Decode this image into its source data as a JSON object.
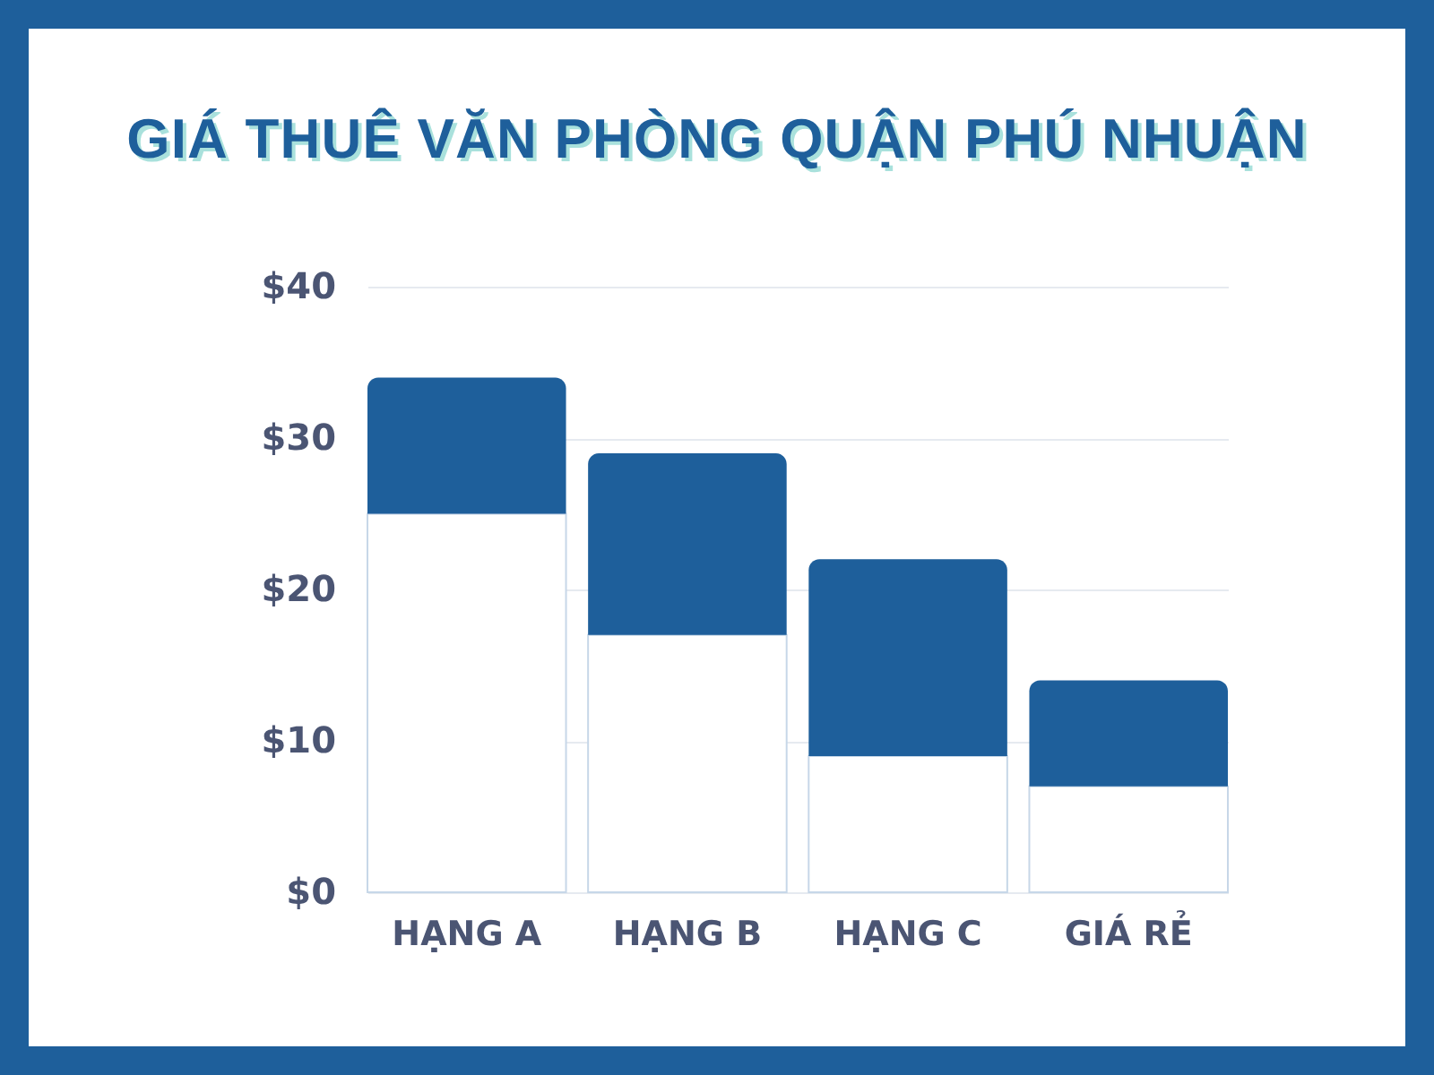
{
  "chart_data": {
    "type": "bar",
    "title": "GIÁ THUÊ VĂN PHÒNG QUẬN PHÚ NHUẬN",
    "categories": [
      "HẠNG A",
      "HẠNG B",
      "HẠNG C",
      "GIÁ RẺ"
    ],
    "stacked": true,
    "series": [
      {
        "color": "#ffffff",
        "values": [
          25,
          17,
          9,
          7
        ]
      },
      {
        "color": "#1e5f9b",
        "values": [
          9,
          12,
          13,
          7
        ]
      }
    ],
    "ylim": [
      0,
      40
    ],
    "yticks": [
      {
        "value": 0,
        "label": "$0"
      },
      {
        "value": 10,
        "label": "$10"
      },
      {
        "value": 20,
        "label": "$20"
      },
      {
        "value": 30,
        "label": "$30"
      },
      {
        "value": 40,
        "label": "$40"
      }
    ],
    "grid": "y"
  }
}
